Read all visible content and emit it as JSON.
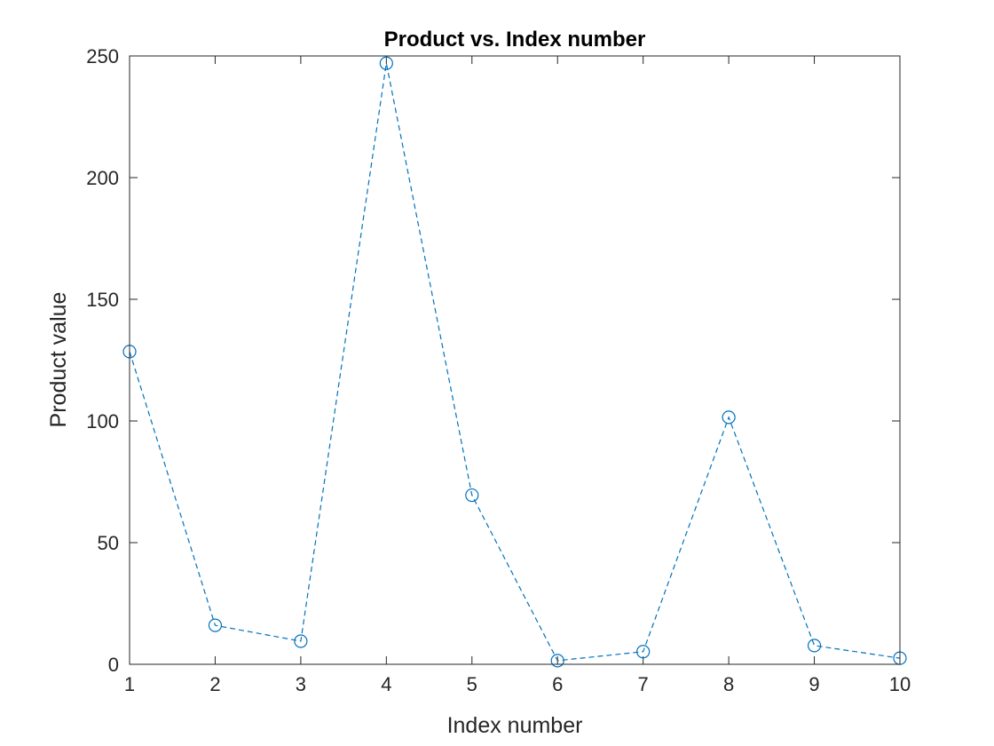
{
  "chart_data": {
    "type": "line",
    "title": "Product vs. Index number",
    "xlabel": "Index number",
    "ylabel": "Product value",
    "xlim": [
      1,
      10
    ],
    "ylim": [
      0,
      250
    ],
    "xticks": [
      1,
      2,
      3,
      4,
      5,
      6,
      7,
      8,
      9,
      10
    ],
    "yticks": [
      0,
      50,
      100,
      150,
      200,
      250
    ],
    "grid": false,
    "series": [
      {
        "x": [
          1,
          2,
          3,
          4,
          5,
          6,
          7,
          8,
          9,
          10
        ],
        "values": [
          128.5,
          16,
          9.5,
          247,
          69.5,
          1.5,
          5.2,
          101.5,
          7.7,
          2.5
        ],
        "color": "#0072BD",
        "line_style": "dashed",
        "marker": "circle"
      }
    ]
  }
}
